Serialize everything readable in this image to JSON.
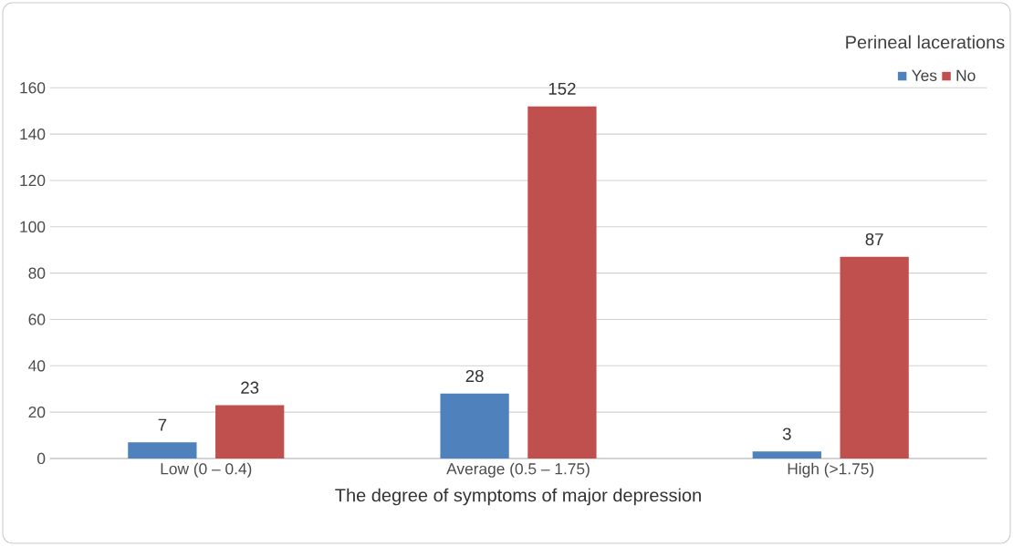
{
  "chart_data": {
    "type": "bar",
    "xlabel": "The degree of symptoms of major depression",
    "legend_title": "Perineal lacerations",
    "categories": [
      "Low (0 – 0.4)",
      "Average (0.5 – 1.75)",
      "High (>1.75)"
    ],
    "series": [
      {
        "name": "Yes",
        "color": "#4f81bd",
        "values": [
          7,
          28,
          3
        ]
      },
      {
        "name": "No",
        "color": "#c0504d",
        "values": [
          23,
          152,
          87
        ]
      }
    ],
    "ylim": [
      0,
      160
    ],
    "yticks": [
      0,
      20,
      40,
      60,
      80,
      100,
      120,
      140,
      160
    ],
    "grid": "y",
    "legend": "top right",
    "data_labels": true
  }
}
